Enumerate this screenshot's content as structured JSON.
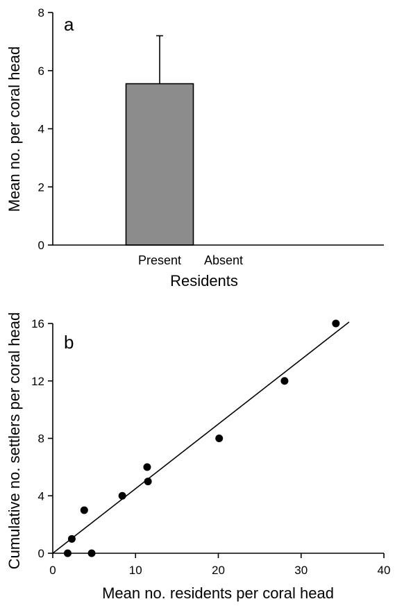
{
  "chart_data": [
    {
      "type": "bar",
      "panel_label": "a",
      "categories": [
        "Present",
        "Absent"
      ],
      "values": [
        5.55,
        0
      ],
      "error_upper": [
        7.2,
        null
      ],
      "xlabel": "Residents",
      "ylabel": "Mean no. per coral head",
      "ylim": [
        0,
        8
      ],
      "yticks": [
        0,
        2,
        4,
        6,
        8
      ],
      "bar_color": "#8c8c8c",
      "grid": false
    },
    {
      "type": "scatter",
      "panel_label": "b",
      "points": [
        {
          "x": 1.8,
          "y": 0
        },
        {
          "x": 2.3,
          "y": 1
        },
        {
          "x": 3.8,
          "y": 3
        },
        {
          "x": 4.7,
          "y": 0
        },
        {
          "x": 8.4,
          "y": 4
        },
        {
          "x": 11.4,
          "y": 6
        },
        {
          "x": 11.5,
          "y": 5
        },
        {
          "x": 20.1,
          "y": 8
        },
        {
          "x": 28.0,
          "y": 12
        },
        {
          "x": 34.2,
          "y": 16
        }
      ],
      "fit_line": {
        "x": [
          0,
          35.8
        ],
        "y": [
          0,
          16.1
        ]
      },
      "xlabel": "Mean no. residents per coral head",
      "ylabel": "Cumulative no. settlers per coral head",
      "xlim": [
        0,
        40
      ],
      "ylim": [
        0,
        16
      ],
      "xticks": [
        0,
        10,
        20,
        30,
        40
      ],
      "yticks": [
        0,
        4,
        8,
        12,
        16
      ],
      "marker_color": "#000000",
      "grid": false
    }
  ]
}
